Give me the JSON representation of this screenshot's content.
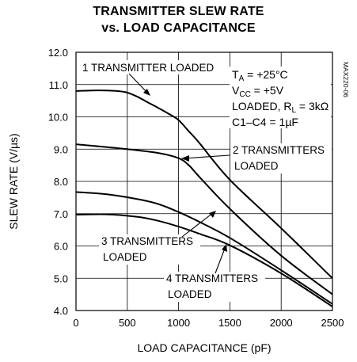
{
  "chart_data": {
    "type": "line",
    "title": "TRANSMITTER SLEW RATE",
    "subtitle": "vs. LOAD CAPACITANCE",
    "xlabel": "LOAD CAPACITANCE (pF)",
    "ylabel": "SLEW RATE (V/µs)",
    "xlim": [
      0,
      2500
    ],
    "ylim": [
      4.0,
      12.0
    ],
    "x_ticks": [
      0,
      500,
      1000,
      1500,
      2000,
      2500
    ],
    "y_ticks": [
      "4.0",
      "5.0",
      "6.0",
      "7.0",
      "8.0",
      "9.0",
      "10.0",
      "11.0",
      "12.0"
    ],
    "grid": true,
    "series": [
      {
        "name": "1 TRANSMITTER LOADED",
        "x": [
          0,
          200,
          400,
          500,
          600,
          700,
          800,
          900,
          1000,
          1100,
          1200,
          1500,
          2000,
          2500
        ],
        "y": [
          10.8,
          10.82,
          10.8,
          10.75,
          10.62,
          10.45,
          10.28,
          10.1,
          9.9,
          9.55,
          9.2,
          8.05,
          6.55,
          5.0
        ]
      },
      {
        "name": "2 TRANSMITTERS LOADED",
        "x": [
          0,
          500,
          800,
          1000,
          1100,
          1200,
          1500,
          2000,
          2500
        ],
        "y": [
          9.15,
          9.0,
          8.88,
          8.72,
          8.5,
          8.15,
          7.15,
          5.7,
          4.5
        ]
      },
      {
        "name": "3 TRANSMITTERS LOADED",
        "x": [
          0,
          300,
          600,
          800,
          1000,
          1200,
          1500,
          2000,
          2500
        ],
        "y": [
          7.67,
          7.6,
          7.45,
          7.3,
          7.05,
          6.75,
          6.25,
          5.25,
          4.2
        ]
      },
      {
        "name": "4 TRANSMITTERS LOADED",
        "x": [
          0,
          300,
          600,
          800,
          1000,
          1200,
          1500,
          2000,
          2500
        ],
        "y": [
          6.97,
          6.98,
          6.9,
          6.78,
          6.6,
          6.38,
          6.02,
          5.15,
          4.12
        ]
      }
    ],
    "annotations": {
      "series_labels": [
        {
          "lines": [
            "1 TRANSMITTER LOADED"
          ]
        },
        {
          "lines": [
            "2 TRANSMITTERS",
            "LOADED"
          ]
        },
        {
          "lines": [
            "3 TRANSMITTERS",
            "LOADED"
          ]
        },
        {
          "lines": [
            "4 TRANSMITTERS",
            "LOADED"
          ]
        }
      ],
      "conditions": {
        "ta": "T",
        "ta_sub": "A",
        "ta_value": " = +25°C",
        "vcc": "V",
        "vcc_sub": "CC",
        "vcc_value": " = +5V",
        "loaded": "LOADED, R",
        "loaded_sub": "L",
        "loaded_value": " = 3kΩ",
        "caps": "C1–C4 = 1µF"
      },
      "figure_code": "MAX220-06"
    }
  }
}
